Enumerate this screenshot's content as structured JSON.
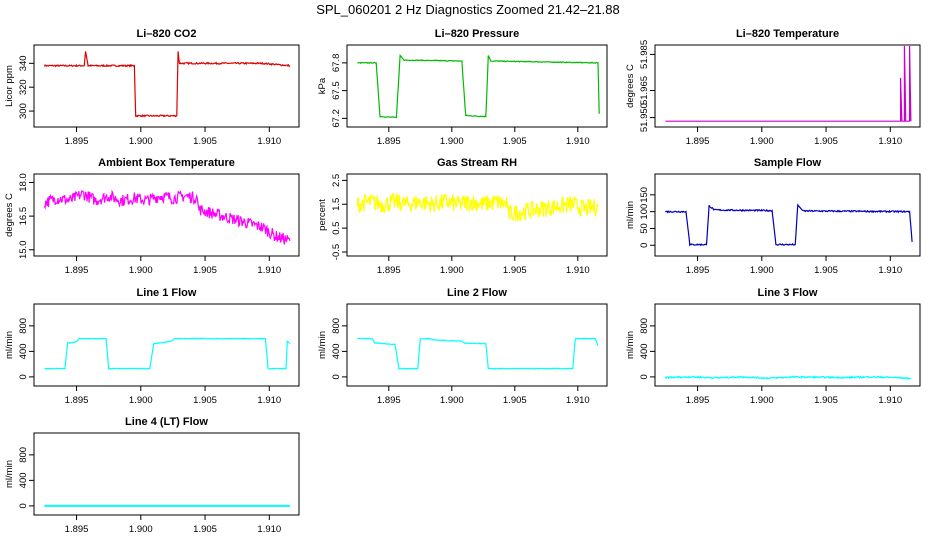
{
  "figure_title": "SPL_060201  2 Hz Diagnostics Zoomed 21.42–21.88",
  "chart_data": [
    {
      "type": "line",
      "title": "Li–820 CO2",
      "ylabel": "Licor ppm",
      "color": "#dd0000",
      "xlim": [
        1.892,
        1.912
      ],
      "ylim": [
        290,
        352
      ],
      "xticks": [
        "1.895",
        "1.900",
        "1.905",
        "1.910"
      ],
      "yticks": [
        "300",
        "320",
        "340"
      ],
      "segments": [
        [
          [
            1.8925,
            338
          ],
          [
            1.8956,
            338
          ],
          [
            1.8957,
            350
          ],
          [
            1.8959,
            338
          ],
          [
            1.8995,
            338
          ],
          [
            1.8996,
            296
          ],
          [
            1.9028,
            296
          ],
          [
            1.9029,
            350
          ],
          [
            1.903,
            340
          ],
          [
            1.9095,
            340
          ],
          [
            1.9116,
            338
          ]
        ]
      ]
    },
    {
      "type": "line",
      "title": "Li–820 Pressure",
      "ylabel": "kPa",
      "color": "#00bb00",
      "xlim": [
        1.892,
        1.912
      ],
      "ylim": [
        67.15,
        67.95
      ],
      "xticks": [
        "1.895",
        "1.900",
        "1.905",
        "1.910"
      ],
      "yticks": [
        "67.2",
        "67.5",
        "67.8"
      ],
      "segments": [
        [
          [
            1.8925,
            67.8
          ],
          [
            1.894,
            67.8
          ],
          [
            1.8943,
            67.22
          ],
          [
            1.8956,
            67.21
          ],
          [
            1.8959,
            67.88
          ],
          [
            1.8962,
            67.83
          ],
          [
            1.9008,
            67.82
          ],
          [
            1.9011,
            67.23
          ],
          [
            1.9027,
            67.22
          ],
          [
            1.9029,
            67.88
          ],
          [
            1.9031,
            67.82
          ],
          [
            1.9116,
            67.8
          ],
          [
            1.9117,
            67.25
          ]
        ]
      ]
    },
    {
      "type": "line",
      "title": "Li–820 Temperature",
      "ylabel": "degrees C",
      "color": "#cc00cc",
      "xlim": [
        1.892,
        1.912
      ],
      "ylim": [
        51.947,
        51.988
      ],
      "xticks": [
        "1.895",
        "1.900",
        "1.905",
        "1.910"
      ],
      "yticks": [
        "51.950",
        "51.965",
        "51.985"
      ],
      "segments": [
        [
          [
            1.8925,
            51.948
          ],
          [
            1.9108,
            51.948
          ],
          [
            1.9108,
            51.972
          ],
          [
            1.9109,
            51.948
          ],
          [
            1.9111,
            51.948
          ],
          [
            1.9111,
            51.99
          ],
          [
            1.9112,
            51.948
          ],
          [
            1.9115,
            51.948
          ],
          [
            1.9115,
            51.99
          ],
          [
            1.9116,
            51.948
          ]
        ]
      ]
    },
    {
      "type": "line",
      "title": "Ambient Box Temperature",
      "ylabel": "degrees C",
      "color": "#ff00ff",
      "xlim": [
        1.892,
        1.912
      ],
      "ylim": [
        14.9,
        18.2
      ],
      "xticks": [
        "1.895",
        "1.900",
        "1.905",
        "1.910"
      ],
      "yticks": [
        "15.0",
        "16.5",
        "18.0"
      ],
      "segments": [
        [
          [
            1.8925,
            17.1
          ],
          [
            1.8935,
            17.3
          ],
          [
            1.8945,
            17.2
          ],
          [
            1.8955,
            17.5
          ],
          [
            1.8965,
            17.2
          ],
          [
            1.8975,
            17.4
          ],
          [
            1.8985,
            17.2
          ],
          [
            1.8995,
            17.3
          ],
          [
            1.9005,
            17.2
          ],
          [
            1.9015,
            17.4
          ],
          [
            1.9025,
            17.3
          ],
          [
            1.9035,
            17.4
          ],
          [
            1.9044,
            17.3
          ],
          [
            1.9045,
            16.8
          ],
          [
            1.9095,
            16.0
          ],
          [
            1.9105,
            15.6
          ],
          [
            1.9116,
            15.4
          ]
        ]
      ]
    },
    {
      "type": "line",
      "title": "Gas Stream RH",
      "ylabel": "percent",
      "color": "#ffff00",
      "xlim": [
        1.892,
        1.912
      ],
      "ylim": [
        -0.5,
        2.6
      ],
      "xticks": [
        "1.895",
        "1.900",
        "1.905",
        "1.910"
      ],
      "yticks": [
        "-0.5",
        "0.5",
        "1.5",
        "2.5"
      ],
      "segments": [
        [
          [
            1.8925,
            1.5
          ],
          [
            1.8935,
            1.6
          ],
          [
            1.8945,
            1.5
          ],
          [
            1.8955,
            1.6
          ],
          [
            1.8965,
            1.5
          ],
          [
            1.8975,
            1.6
          ],
          [
            1.8985,
            1.5
          ],
          [
            1.8995,
            1.6
          ],
          [
            1.9005,
            1.5
          ],
          [
            1.9015,
            1.6
          ],
          [
            1.9025,
            1.5
          ],
          [
            1.9035,
            1.6
          ],
          [
            1.9044,
            1.5
          ],
          [
            1.9045,
            1.1
          ],
          [
            1.9095,
            1.5
          ],
          [
            1.9105,
            1.3
          ],
          [
            1.9116,
            1.4
          ]
        ]
      ]
    },
    {
      "type": "line",
      "title": "Sample Flow",
      "ylabel": "ml/min",
      "color": "#0000bb",
      "xlim": [
        1.892,
        1.912
      ],
      "ylim": [
        -20,
        200
      ],
      "xticks": [
        "1.895",
        "1.900",
        "1.905",
        "1.910"
      ],
      "yticks": [
        "0",
        "50",
        "100",
        "150"
      ],
      "segments": [
        [
          [
            1.8925,
            100
          ],
          [
            1.8941,
            100
          ],
          [
            1.8944,
            2
          ],
          [
            1.8957,
            2
          ],
          [
            1.8959,
            118
          ],
          [
            1.8963,
            105
          ],
          [
            1.9008,
            103
          ],
          [
            1.9011,
            2
          ],
          [
            1.9026,
            2
          ],
          [
            1.9028,
            120
          ],
          [
            1.9032,
            102
          ],
          [
            1.9115,
            100
          ],
          [
            1.9117,
            10
          ]
        ]
      ]
    },
    {
      "type": "line",
      "title": "Line 1 Flow",
      "ylabel": "ml/min",
      "color": "#00ffff",
      "xlim": [
        1.892,
        1.912
      ],
      "ylim": [
        -80,
        1080
      ],
      "xticks": [
        "1.895",
        "1.900",
        "1.905",
        "1.910"
      ],
      "yticks": [
        "0",
        "400",
        "800"
      ],
      "segments": [
        [
          [
            1.8925,
            130
          ],
          [
            1.8941,
            130
          ],
          [
            1.8943,
            530
          ],
          [
            1.895,
            550
          ],
          [
            1.8952,
            600
          ],
          [
            1.8973,
            600
          ],
          [
            1.8975,
            130
          ],
          [
            1.9007,
            130
          ],
          [
            1.901,
            520
          ],
          [
            1.9024,
            560
          ],
          [
            1.9026,
            600
          ],
          [
            1.9097,
            600
          ],
          [
            1.9099,
            130
          ],
          [
            1.9113,
            130
          ],
          [
            1.9114,
            560
          ],
          [
            1.9116,
            520
          ]
        ]
      ]
    },
    {
      "type": "line",
      "title": "Line 2 Flow",
      "ylabel": "ml/min",
      "color": "#00ffff",
      "xlim": [
        1.892,
        1.912
      ],
      "ylim": [
        -80,
        1080
      ],
      "xticks": [
        "1.895",
        "1.900",
        "1.905",
        "1.910"
      ],
      "yticks": [
        "0",
        "400",
        "800"
      ],
      "segments": [
        [
          [
            1.8925,
            600
          ],
          [
            1.8937,
            600
          ],
          [
            1.8939,
            530
          ],
          [
            1.8955,
            510
          ],
          [
            1.8958,
            130
          ],
          [
            1.8973,
            130
          ],
          [
            1.8975,
            600
          ],
          [
            1.8983,
            600
          ],
          [
            1.8985,
            580
          ],
          [
            1.9008,
            560
          ],
          [
            1.901,
            530
          ],
          [
            1.9027,
            520
          ],
          [
            1.9029,
            130
          ],
          [
            1.9096,
            130
          ],
          [
            1.9098,
            600
          ],
          [
            1.9114,
            600
          ],
          [
            1.9116,
            490
          ]
        ]
      ]
    },
    {
      "type": "line",
      "title": "Line 3 Flow",
      "ylabel": "ml/min",
      "color": "#00ffff",
      "xlim": [
        1.892,
        1.912
      ],
      "ylim": [
        -80,
        1080
      ],
      "xticks": [
        "1.895",
        "1.900",
        "1.905",
        "1.910"
      ],
      "yticks": [
        "0",
        "400",
        "800"
      ],
      "segments": [
        [
          [
            1.8925,
            -10
          ],
          [
            1.8945,
            0
          ],
          [
            1.8965,
            -15
          ],
          [
            1.8985,
            0
          ],
          [
            1.9005,
            -20
          ],
          [
            1.9025,
            0
          ],
          [
            1.9045,
            -5
          ],
          [
            1.9065,
            -10
          ],
          [
            1.9085,
            0
          ],
          [
            1.9105,
            -10
          ],
          [
            1.9116,
            -25
          ]
        ]
      ]
    },
    {
      "type": "line",
      "title": "Line 4 (LT) Flow",
      "ylabel": "ml/min",
      "color": "#00ffff",
      "xlim": [
        1.892,
        1.912
      ],
      "ylim": [
        -80,
        1080
      ],
      "xticks": [
        "1.895",
        "1.900",
        "1.905",
        "1.910"
      ],
      "yticks": [
        "0",
        "400",
        "800"
      ],
      "segments": [
        [
          [
            1.8925,
            0
          ],
          [
            1.9116,
            0
          ]
        ]
      ]
    }
  ]
}
